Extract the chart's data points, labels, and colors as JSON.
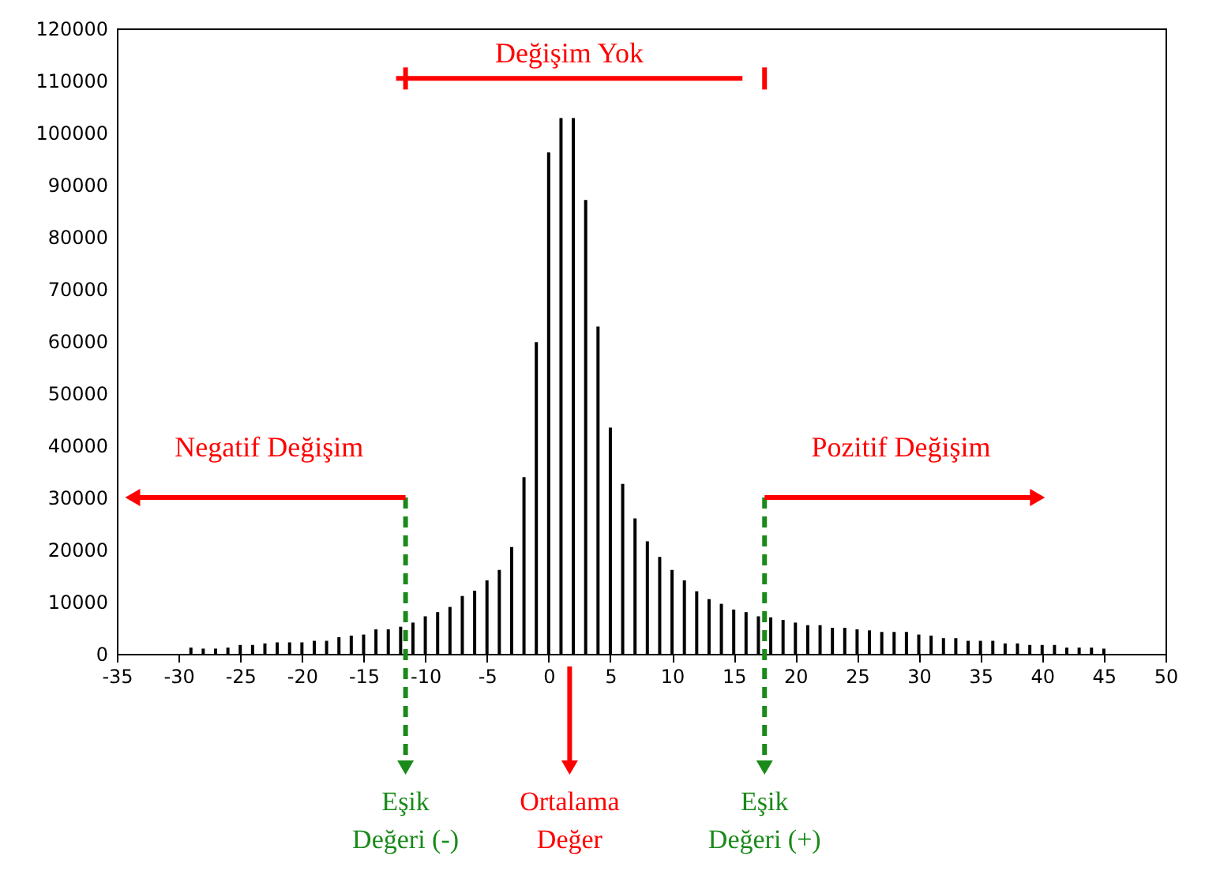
{
  "chart_data": {
    "type": "bar",
    "x": [
      -29,
      -28,
      -27,
      -26,
      -25,
      -24,
      -23,
      -22,
      -21,
      -20,
      -19,
      -18,
      -17,
      -16,
      -15,
      -14,
      -13,
      -12,
      -11,
      -10,
      -9,
      -8,
      -7,
      -6,
      -5,
      -4,
      -3,
      -2,
      -1,
      0,
      1,
      2,
      3,
      4,
      5,
      6,
      7,
      8,
      9,
      10,
      11,
      12,
      13,
      14,
      15,
      16,
      17,
      18,
      19,
      20,
      21,
      22,
      23,
      24,
      25,
      26,
      27,
      28,
      29,
      30,
      31,
      32,
      33,
      34,
      35,
      36,
      37,
      38,
      39,
      40,
      41,
      42,
      43,
      44,
      45
    ],
    "values": [
      1200,
      1000,
      1000,
      1200,
      1700,
      1700,
      2000,
      2200,
      2200,
      2200,
      2500,
      2500,
      3200,
      3500,
      3700,
      4700,
      4700,
      5200,
      6000,
      7200,
      8000,
      9000,
      11100,
      12100,
      14100,
      16100,
      20500,
      33900,
      59800,
      96200,
      102800,
      102800,
      87100,
      62800,
      43400,
      32600,
      26000,
      21600,
      18600,
      16100,
      14100,
      12000,
      10500,
      9600,
      8500,
      8000,
      7200,
      7000,
      6500,
      6000,
      5500,
      5500,
      5000,
      5000,
      4700,
      4500,
      4200,
      4200,
      4200,
      3700,
      3500,
      3000,
      3000,
      2500,
      2500,
      2500,
      2000,
      2000,
      1700,
      1700,
      1700,
      1200,
      1200,
      1200,
      1000
    ],
    "color": "#000000",
    "xlim": [
      -35,
      50
    ],
    "xticks": [
      -35,
      -30,
      -25,
      -20,
      -15,
      -10,
      -5,
      0,
      5,
      10,
      15,
      20,
      25,
      30,
      35,
      40,
      45,
      50
    ],
    "ylim": [
      0,
      120000
    ],
    "yticks": [
      0,
      10000,
      20000,
      30000,
      40000,
      50000,
      60000,
      70000,
      80000,
      90000,
      100000,
      110000,
      120000
    ],
    "grid": false,
    "ref_lines": [
      {
        "axis": "x",
        "value": -11.6,
        "label": "Eşik Değeri (-)",
        "color": "#1a8a1a",
        "line_style": "dashed"
      },
      {
        "axis": "x",
        "value": 1.7,
        "label": "Ortalama Değer",
        "color": "#ff0000",
        "line_style": "solid"
      },
      {
        "axis": "x",
        "value": 17.5,
        "label": "Eşik Değeri (+)",
        "color": "#1a8a1a",
        "line_style": "dashed"
      }
    ],
    "annotations": [
      "Negatif Değişim",
      "Değişim Yok",
      "Pozitif Değişim"
    ]
  }
}
